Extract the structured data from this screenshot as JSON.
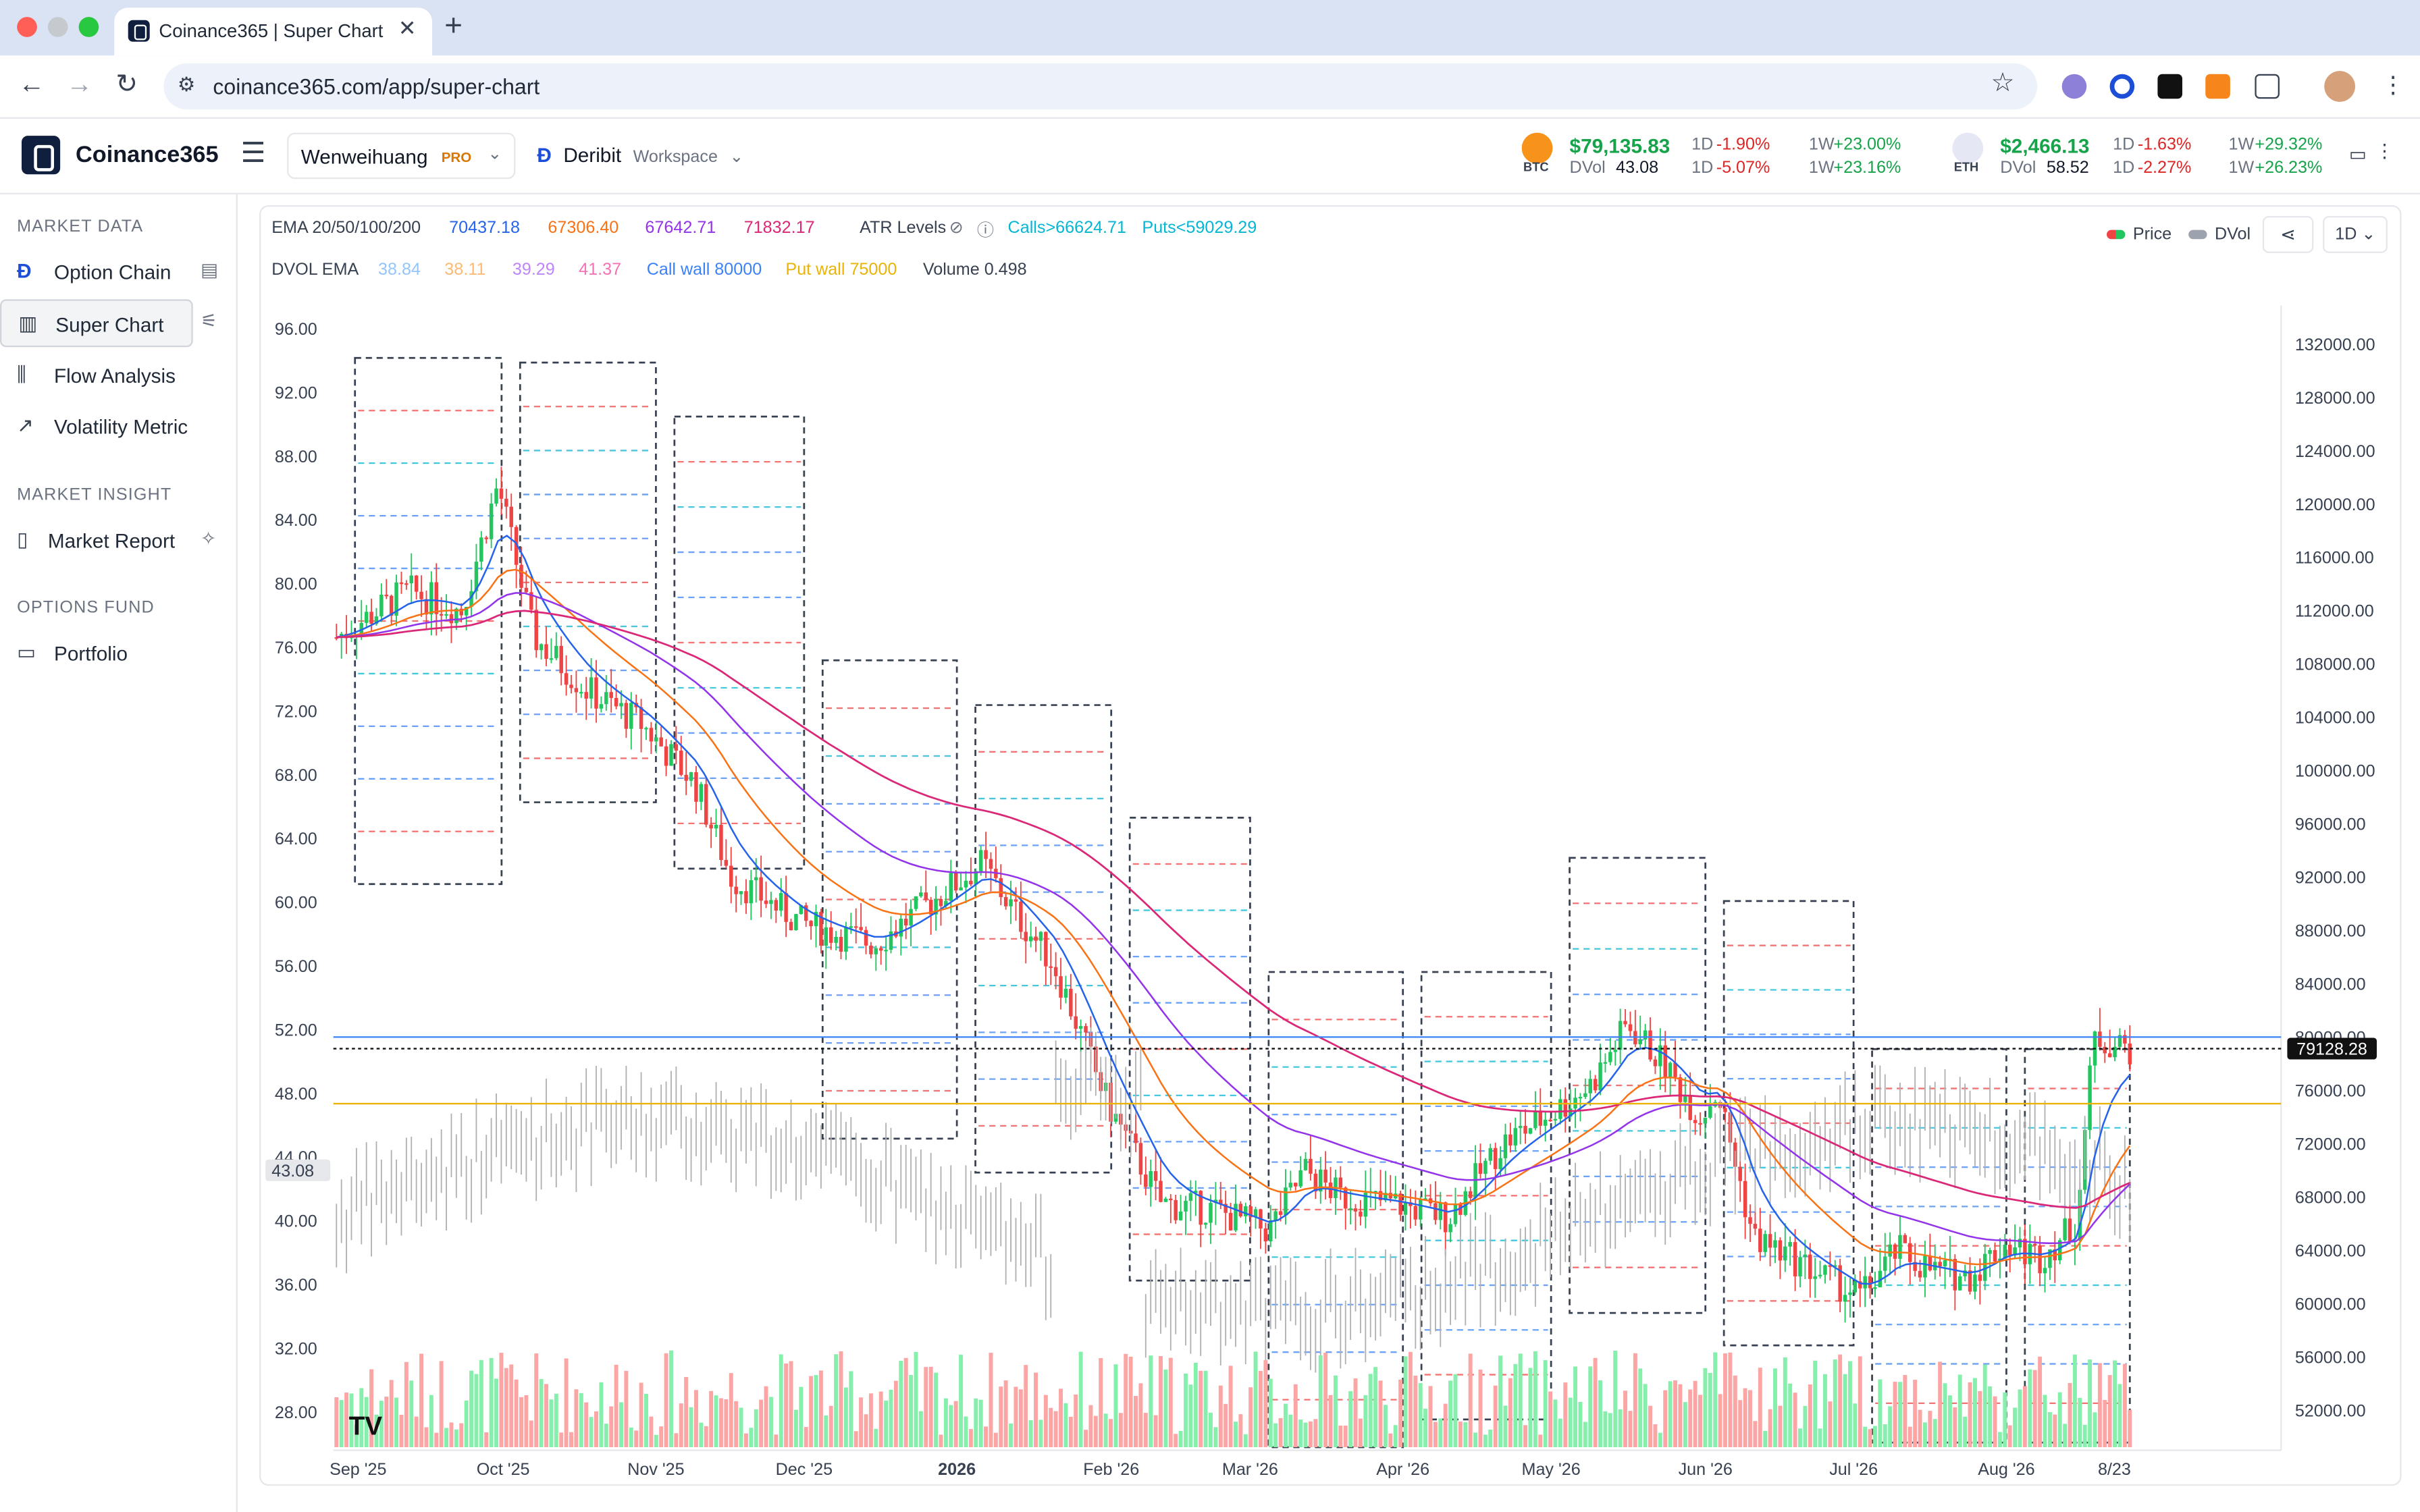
{
  "browser": {
    "tab_title": "Coinance365 | Super Chart",
    "url": "coinance365.com/app/super-chart"
  },
  "app": {
    "brand": "Coinance365",
    "user": "Wenweihuang",
    "plan": "PRO",
    "exchange": "Deribit",
    "workspace": "Workspace"
  },
  "tickers": {
    "btc": {
      "symbol": "BTC",
      "price": "$79,135.83",
      "d1_label": "1D",
      "d1": "-1.90%",
      "w1_label": "1W",
      "w1": "+23.00%",
      "dvol_label": "DVol",
      "dvol": "43.08",
      "dvol_d1": "-5.07%",
      "dvol_w1": "+23.16%"
    },
    "eth": {
      "symbol": "ETH",
      "price": "$2,466.13",
      "d1_label": "1D",
      "d1": "-1.63%",
      "w1_label": "1W",
      "w1": "+29.32%",
      "dvol_label": "DVol",
      "dvol": "58.52",
      "dvol_d1": "-2.27%",
      "dvol_w1": "+26.23%"
    }
  },
  "sidebar": {
    "sections": [
      "MARKET DATA",
      "MARKET INSIGHT",
      "OPTIONS FUND"
    ],
    "items": [
      {
        "label": "Option Chain"
      },
      {
        "label": "Super Chart"
      },
      {
        "label": "Flow Analysis"
      },
      {
        "label": "Volatility Metric"
      },
      {
        "label": "Market Report"
      },
      {
        "label": "Portfolio"
      }
    ]
  },
  "legend": {
    "ema_label": "EMA 20/50/100/200",
    "ema": [
      "70437.18",
      "67306.40",
      "67642.71",
      "71832.17"
    ],
    "atr": "ATR Levels",
    "calls": "Calls>66624.71",
    "puts": "Puts<59029.29",
    "dvol_ema_label": "DVOL EMA",
    "dvol_ema": [
      "38.84",
      "38.11",
      "39.29",
      "41.37"
    ],
    "call_wall": "Call wall 80000",
    "put_wall": "Put wall 75000",
    "volume": "Volume 0.498",
    "toggle_price": "Price",
    "toggle_dvol": "DVol",
    "interval": "1D"
  },
  "colors": {
    "up": "#22c55e",
    "down": "#ef4444",
    "ema20": "#2563eb",
    "ema50": "#f97316",
    "ema100": "#9333ea",
    "ema200": "#db2777",
    "call_wall": "#3b82f6",
    "put_wall": "#eab308"
  },
  "chart_data": {
    "type": "candlestick",
    "left_axis": {
      "label": "DVol",
      "ticks": [
        "96.00",
        "92.00",
        "88.00",
        "84.00",
        "80.00",
        "76.00",
        "72.00",
        "68.00",
        "64.00",
        "60.00",
        "56.00",
        "52.00",
        "48.00",
        "44.00",
        "40.00",
        "36.00",
        "32.00",
        "28.00"
      ],
      "current": "43.08"
    },
    "right_axis": {
      "label": "Price",
      "ticks": [
        "132000.00",
        "128000.00",
        "124000.00",
        "120000.00",
        "116000.00",
        "112000.00",
        "108000.00",
        "104000.00",
        "100000.00",
        "96000.00",
        "92000.00",
        "88000.00",
        "84000.00",
        "80000.00",
        "76000.00",
        "72000.00",
        "68000.00",
        "64000.00",
        "60000.00",
        "56000.00",
        "52000.00"
      ],
      "current": "79128.28"
    },
    "x_ticks": [
      "Sep '25",
      "Oct '25",
      "Nov '25",
      "Dec '25",
      "2026",
      "Feb '26",
      "Mar '26",
      "Apr '26",
      "May '26",
      "Jun '26",
      "Jul '26",
      "Aug '26",
      "8/23"
    ],
    "price_path": [
      [
        0,
        110000
      ],
      [
        0.04,
        113500
      ],
      [
        0.07,
        112000
      ],
      [
        0.09,
        121500
      ],
      [
        0.11,
        110000
      ],
      [
        0.14,
        106000
      ],
      [
        0.17,
        103500
      ],
      [
        0.2,
        99000
      ],
      [
        0.22,
        92000
      ],
      [
        0.26,
        88500
      ],
      [
        0.3,
        87000
      ],
      [
        0.33,
        90000
      ],
      [
        0.36,
        93000
      ],
      [
        0.38,
        89000
      ],
      [
        0.4,
        85500
      ],
      [
        0.43,
        75000
      ],
      [
        0.46,
        67500
      ],
      [
        0.49,
        67000
      ],
      [
        0.52,
        65500
      ],
      [
        0.54,
        70000
      ],
      [
        0.56,
        68000
      ],
      [
        0.59,
        67500
      ],
      [
        0.62,
        66500
      ],
      [
        0.65,
        72000
      ],
      [
        0.68,
        74500
      ],
      [
        0.7,
        76500
      ],
      [
        0.72,
        81000
      ],
      [
        0.74,
        78000
      ],
      [
        0.76,
        74000
      ],
      [
        0.77,
        76000
      ],
      [
        0.79,
        65000
      ],
      [
        0.81,
        63500
      ],
      [
        0.83,
        62000
      ],
      [
        0.85,
        60500
      ],
      [
        0.87,
        64000
      ],
      [
        0.89,
        62500
      ],
      [
        0.91,
        62000
      ],
      [
        0.93,
        64500
      ],
      [
        0.95,
        63500
      ],
      [
        0.97,
        66000
      ],
      [
        0.98,
        80000
      ],
      [
        1,
        79128
      ]
    ],
    "call_wall": 80000,
    "put_wall": 75000,
    "ema": {
      "20": 70437.18,
      "50": 67306.4,
      "100": 67642.71,
      "200": 71832.17
    }
  }
}
